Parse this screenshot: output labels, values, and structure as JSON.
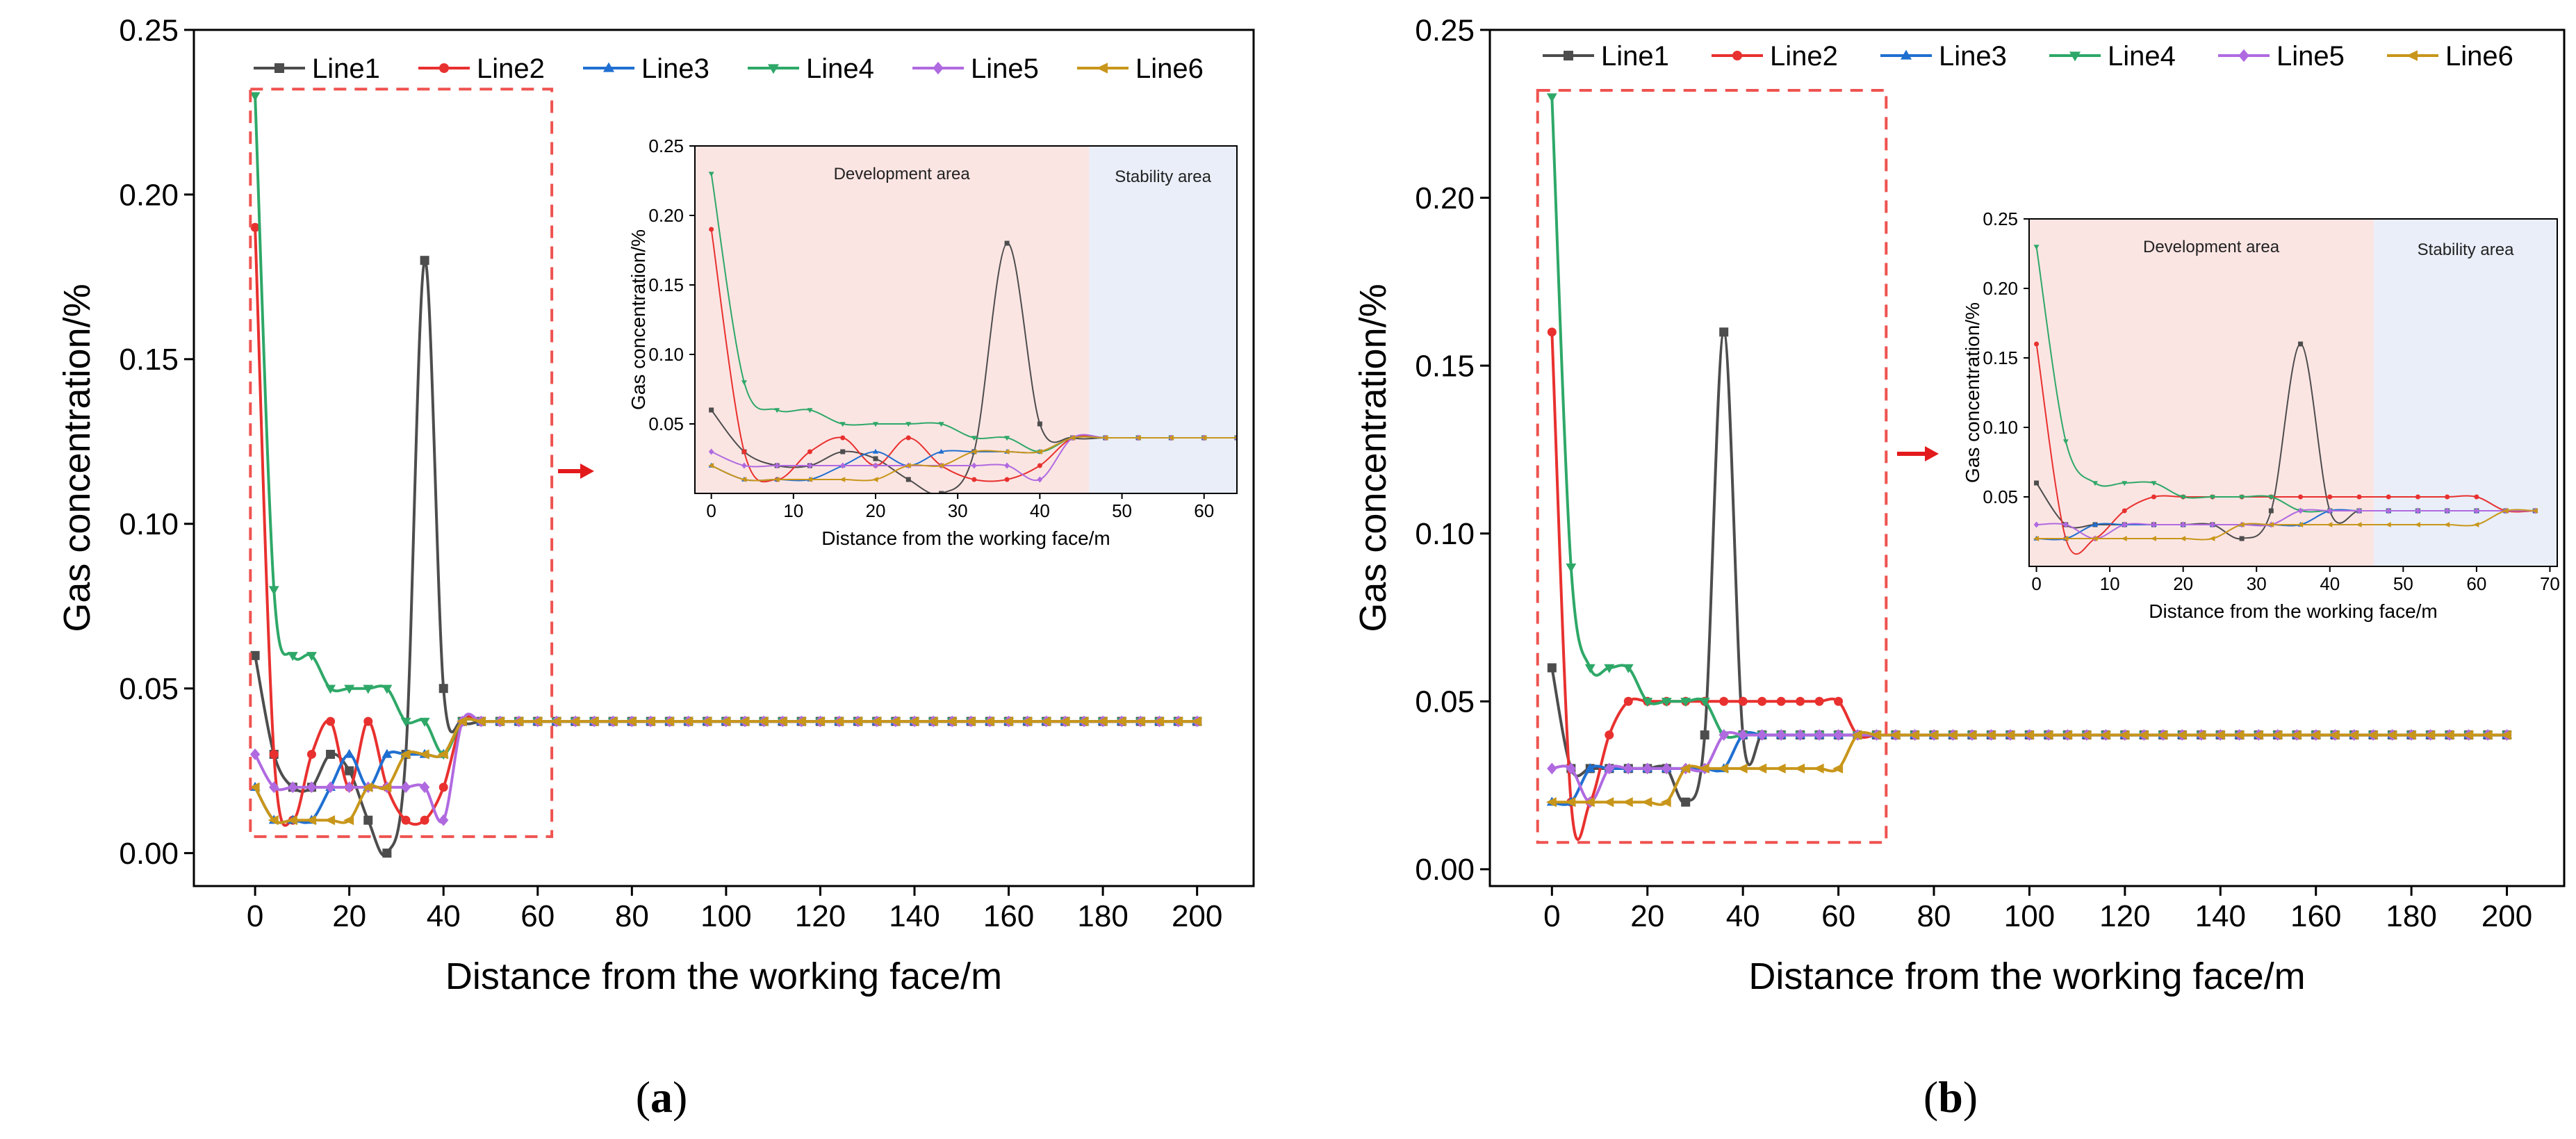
{
  "series_colors": {
    "Line1": "#4d4d4d",
    "Line2": "#e8312f",
    "Line3": "#1f6fd1",
    "Line4": "#2ea868",
    "Line5": "#b06ae0",
    "Line6": "#c8961a"
  },
  "zone_colors": {
    "development": "#fbe5e3",
    "stability": "#e9eef9",
    "dashed_box": "#ef5350",
    "arrow": "#e31a1c"
  },
  "chart_data": [
    {
      "id": "a",
      "type": "line",
      "caption": "a",
      "xlabel": "Distance from the working face/m",
      "ylabel": "Gas concentration/%",
      "xlim": [
        -13,
        212
      ],
      "ylim": [
        -0.01,
        0.25
      ],
      "xticks": [
        0,
        20,
        40,
        60,
        80,
        100,
        120,
        140,
        160,
        180,
        200
      ],
      "yticks": [
        0.0,
        0.05,
        0.1,
        0.15,
        0.2,
        0.25
      ],
      "legend_position": "top",
      "zoom_box_x": [
        -1,
        63
      ],
      "zoom_box_y": [
        0.005,
        0.232
      ],
      "series": [
        {
          "name": "Line1",
          "x": [
            0,
            4,
            8,
            12,
            16,
            20,
            24,
            28,
            32,
            36,
            40,
            44
          ],
          "y": [
            0.06,
            0.03,
            0.02,
            0.02,
            0.03,
            0.025,
            0.01,
            0.0,
            0.03,
            0.18,
            0.05,
            0.04
          ]
        },
        {
          "name": "Line2",
          "x": [
            0,
            4,
            8,
            12,
            16,
            20,
            24,
            28,
            32,
            36,
            40,
            44
          ],
          "y": [
            0.19,
            0.03,
            0.01,
            0.03,
            0.04,
            0.02,
            0.04,
            0.02,
            0.01,
            0.01,
            0.02,
            0.04
          ]
        },
        {
          "name": "Line3",
          "x": [
            0,
            4,
            8,
            12,
            16,
            20,
            24,
            28,
            32,
            36,
            40,
            44
          ],
          "y": [
            0.02,
            0.01,
            0.01,
            0.01,
            0.02,
            0.03,
            0.02,
            0.03,
            0.03,
            0.03,
            0.03,
            0.04
          ]
        },
        {
          "name": "Line4",
          "x": [
            0,
            4,
            8,
            12,
            16,
            20,
            24,
            28,
            32,
            36,
            40,
            44
          ],
          "y": [
            0.23,
            0.08,
            0.06,
            0.06,
            0.05,
            0.05,
            0.05,
            0.05,
            0.04,
            0.04,
            0.03,
            0.04
          ]
        },
        {
          "name": "Line5",
          "x": [
            0,
            4,
            8,
            12,
            16,
            20,
            24,
            28,
            32,
            36,
            40,
            44
          ],
          "y": [
            0.03,
            0.02,
            0.02,
            0.02,
            0.02,
            0.02,
            0.02,
            0.02,
            0.02,
            0.02,
            0.01,
            0.04
          ]
        },
        {
          "name": "Line6",
          "x": [
            0,
            4,
            8,
            12,
            16,
            20,
            24,
            28,
            32,
            36,
            40,
            44
          ],
          "y": [
            0.02,
            0.01,
            0.01,
            0.01,
            0.01,
            0.01,
            0.02,
            0.02,
            0.03,
            0.03,
            0.03,
            0.04
          ]
        }
      ],
      "common_tail": {
        "x_start": 48,
        "x_end": 200,
        "step": 4,
        "y": 0.04
      },
      "inset": {
        "xlabel": "Distance from the working face/m",
        "ylabel": "Gas concentration/%",
        "xlim": [
          -2,
          64
        ],
        "ylim": [
          0.0,
          0.25
        ],
        "xticks": [
          0,
          10,
          20,
          30,
          40,
          50,
          60
        ],
        "yticks": [
          0.05,
          0.1,
          0.15,
          0.2,
          0.25
        ],
        "development_area": {
          "label": "Development area",
          "x": [
            -2,
            46
          ]
        },
        "stability_area": {
          "label": "Stability area",
          "x": [
            46,
            64
          ]
        },
        "tail_end": 64
      }
    },
    {
      "id": "b",
      "type": "line",
      "caption": "b",
      "xlabel": "Distance from the working face/m",
      "ylabel": "Gas concentration/%",
      "xlim": [
        -13,
        212
      ],
      "ylim": [
        -0.005,
        0.25
      ],
      "xticks": [
        0,
        20,
        40,
        60,
        80,
        100,
        120,
        140,
        160,
        180,
        200
      ],
      "yticks": [
        0.0,
        0.05,
        0.1,
        0.15,
        0.2,
        0.25
      ],
      "legend_position": "top",
      "zoom_box_x": [
        -3,
        70
      ],
      "zoom_box_y": [
        0.008,
        0.232
      ],
      "series": [
        {
          "name": "Line1",
          "x": [
            0,
            4,
            8,
            12,
            16,
            20,
            24,
            28,
            32,
            36,
            40,
            44,
            48,
            52,
            56,
            60,
            64
          ],
          "y": [
            0.06,
            0.03,
            0.03,
            0.03,
            0.03,
            0.03,
            0.03,
            0.02,
            0.04,
            0.16,
            0.04,
            0.04,
            0.04,
            0.04,
            0.04,
            0.04,
            0.04
          ]
        },
        {
          "name": "Line2",
          "x": [
            0,
            4,
            8,
            12,
            16,
            20,
            24,
            28,
            32,
            36,
            40,
            44,
            48,
            52,
            56,
            60,
            64
          ],
          "y": [
            0.16,
            0.02,
            0.02,
            0.04,
            0.05,
            0.05,
            0.05,
            0.05,
            0.05,
            0.05,
            0.05,
            0.05,
            0.05,
            0.05,
            0.05,
            0.05,
            0.04
          ]
        },
        {
          "name": "Line3",
          "x": [
            0,
            4,
            8,
            12,
            16,
            20,
            24,
            28,
            32,
            36,
            40,
            44,
            48,
            52,
            56,
            60,
            64
          ],
          "y": [
            0.02,
            0.02,
            0.03,
            0.03,
            0.03,
            0.03,
            0.03,
            0.03,
            0.03,
            0.03,
            0.04,
            0.04,
            0.04,
            0.04,
            0.04,
            0.04,
            0.04
          ]
        },
        {
          "name": "Line4",
          "x": [
            0,
            4,
            8,
            12,
            16,
            20,
            24,
            28,
            32,
            36,
            40,
            44,
            48,
            52,
            56,
            60,
            64
          ],
          "y": [
            0.23,
            0.09,
            0.06,
            0.06,
            0.06,
            0.05,
            0.05,
            0.05,
            0.05,
            0.04,
            0.04,
            0.04,
            0.04,
            0.04,
            0.04,
            0.04,
            0.04
          ]
        },
        {
          "name": "Line5",
          "x": [
            0,
            4,
            8,
            12,
            16,
            20,
            24,
            28,
            32,
            36,
            40,
            44,
            48,
            52,
            56,
            60,
            64
          ],
          "y": [
            0.03,
            0.03,
            0.02,
            0.03,
            0.03,
            0.03,
            0.03,
            0.03,
            0.03,
            0.04,
            0.04,
            0.04,
            0.04,
            0.04,
            0.04,
            0.04,
            0.04
          ]
        },
        {
          "name": "Line6",
          "x": [
            0,
            4,
            8,
            12,
            16,
            20,
            24,
            28,
            32,
            36,
            40,
            44,
            48,
            52,
            56,
            60,
            64
          ],
          "y": [
            0.02,
            0.02,
            0.02,
            0.02,
            0.02,
            0.02,
            0.02,
            0.03,
            0.03,
            0.03,
            0.03,
            0.03,
            0.03,
            0.03,
            0.03,
            0.03,
            0.04
          ]
        }
      ],
      "common_tail": {
        "x_start": 68,
        "x_end": 200,
        "step": 4,
        "y": 0.04
      },
      "inset": {
        "xlabel": "Distance from the working face/m",
        "ylabel": "Gas concentration/%",
        "xlim": [
          -1,
          71
        ],
        "ylim": [
          0.0,
          0.25
        ],
        "xticks": [
          0,
          10,
          20,
          30,
          40,
          50,
          60,
          70
        ],
        "yticks": [
          0.05,
          0.1,
          0.15,
          0.2,
          0.25
        ],
        "development_area": {
          "label": "Development area",
          "x": [
            -1,
            46
          ]
        },
        "stability_area": {
          "label": "Stability area",
          "x": [
            46,
            71
          ]
        },
        "tail_end": 71
      }
    }
  ]
}
